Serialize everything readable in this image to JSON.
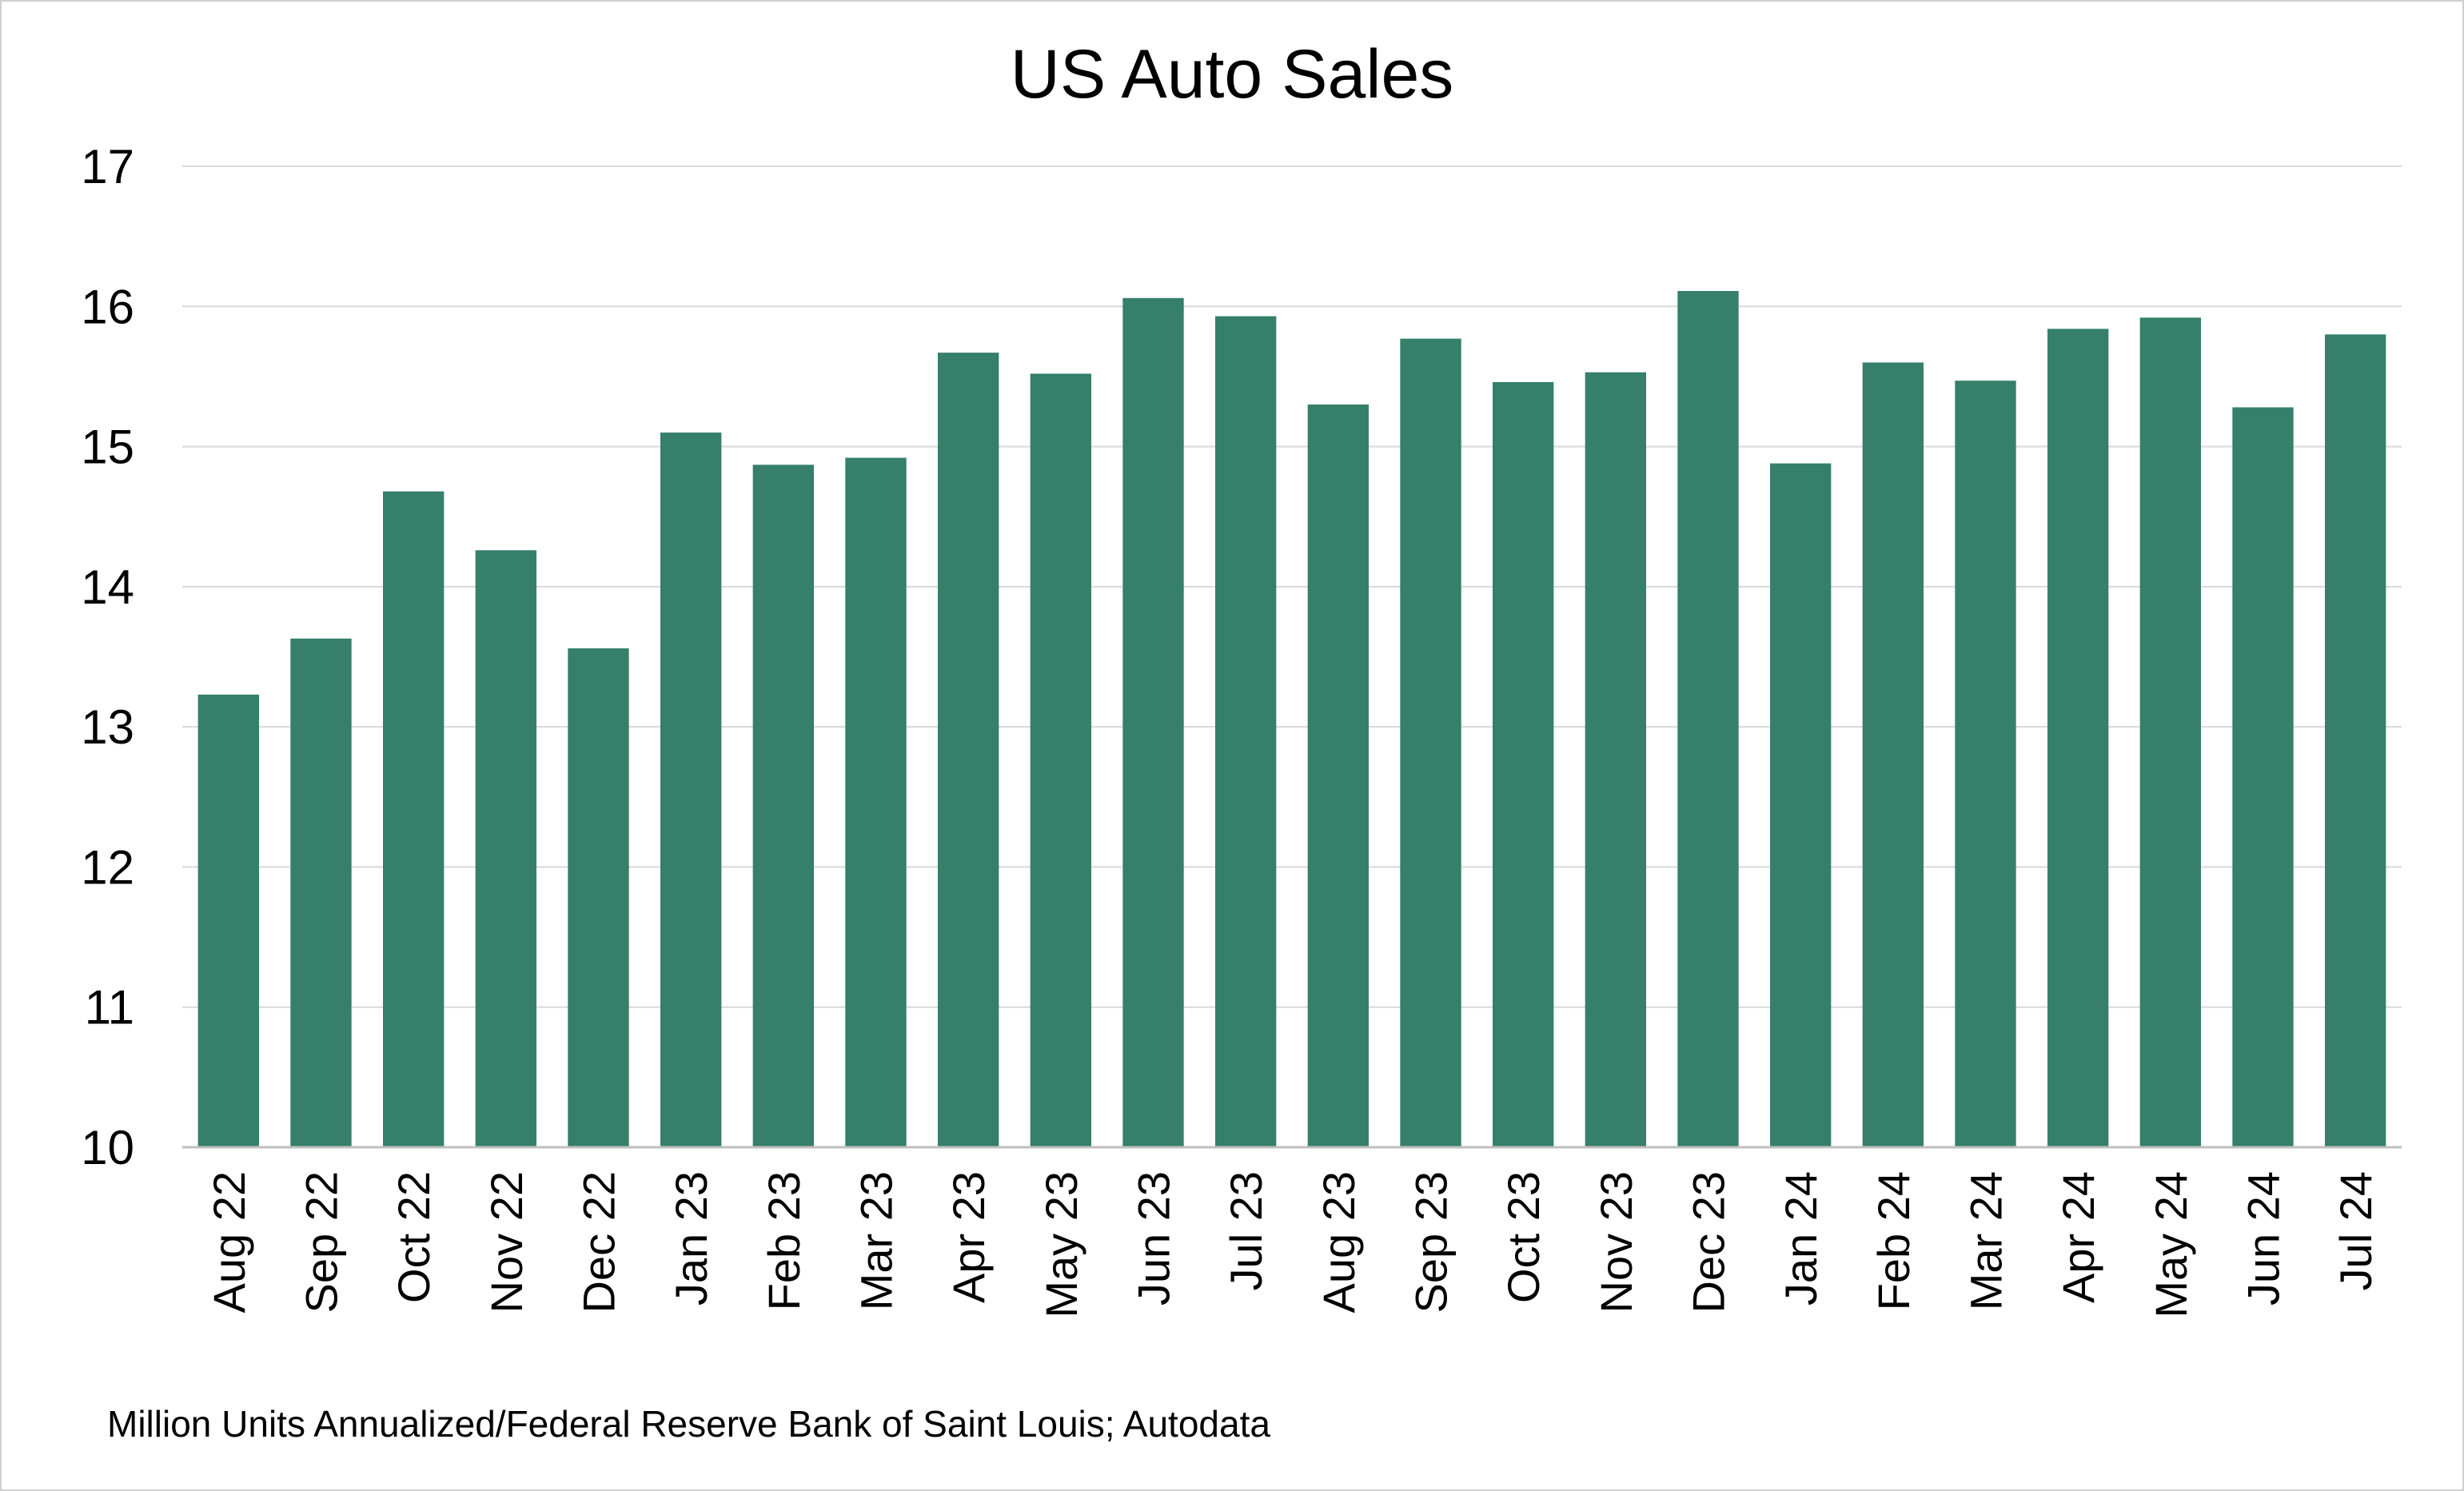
{
  "chart_data": {
    "type": "bar",
    "title": "US Auto Sales",
    "xlabel": "",
    "ylabel": "",
    "ylim": [
      10,
      17
    ],
    "yticks": [
      10,
      11,
      12,
      13,
      14,
      15,
      16,
      17
    ],
    "grid": true,
    "bar_color": "#357f6b",
    "categories": [
      "Aug 22",
      "Sep 22",
      "Oct 22",
      "Nov 22",
      "Dec 22",
      "Jan 23",
      "Feb 23",
      "Mar 23",
      "Apr 23",
      "May 23",
      "Jun 23",
      "Jul 23",
      "Aug 23",
      "Sep 23",
      "Oct 23",
      "Nov 23",
      "Dec 23",
      "Jan 24",
      "Feb 24",
      "Mar 24",
      "Apr 24",
      "May 24",
      "Jun 24",
      "Jul 24"
    ],
    "values": [
      13.23,
      13.63,
      14.68,
      14.26,
      13.56,
      15.1,
      14.87,
      14.92,
      15.67,
      15.52,
      16.06,
      15.93,
      15.3,
      15.77,
      15.46,
      15.53,
      16.11,
      14.88,
      15.6,
      15.47,
      15.84,
      15.92,
      15.28,
      15.8
    ],
    "source": "Million Units Annualized/Federal Reserve Bank of Saint Louis; Autodata"
  }
}
